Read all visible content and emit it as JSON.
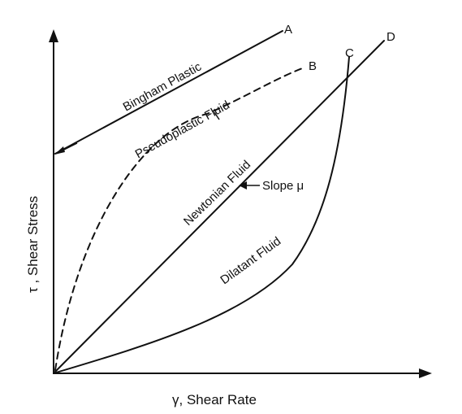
{
  "axes": {
    "x_label": "γ, Shear Rate",
    "y_label": "τ , Shear Stress"
  },
  "curves": {
    "bingham": {
      "name": "Bingham Plastic",
      "point": "A"
    },
    "pseudoplastic": {
      "name": "Pseudoplastic Fluid",
      "point": "B",
      "style": "dashed"
    },
    "dilatant": {
      "name": "Dilatant Fluid",
      "point": "C"
    },
    "newtonian": {
      "name": "Newtonian Fluid",
      "point": "D"
    }
  },
  "annotations": {
    "slope": "Slope μ"
  },
  "colors": {
    "ink": "#111111",
    "background": "#ffffff"
  }
}
